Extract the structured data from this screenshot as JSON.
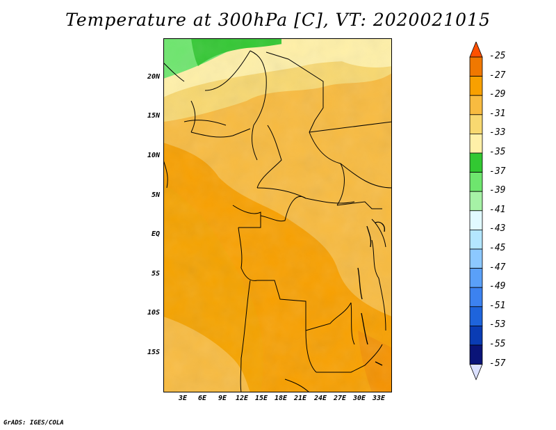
{
  "title": "Temperature at 300hPa [C], VT: 2020021015",
  "footer": "GrADS: IGES/COLA",
  "map": {
    "lat_ticks": [
      "20N",
      "15N",
      "10N",
      "5N",
      "EQ",
      "5S",
      "10S",
      "15S"
    ],
    "lon_ticks": [
      "3E",
      "6E",
      "9E",
      "12E",
      "15E",
      "18E",
      "21E",
      "24E",
      "27E",
      "30E",
      "33E"
    ]
  },
  "colorbar": {
    "labels": [
      "-25",
      "-27",
      "-29",
      "-31",
      "-33",
      "-35",
      "-37",
      "-39",
      "-41",
      "-43",
      "-45",
      "-47",
      "-49",
      "-51",
      "-53",
      "-55",
      "-57"
    ],
    "colors": [
      "#ff5000",
      "#f07800",
      "#f8a000",
      "#f8bb40",
      "#f8d870",
      "#fff0a8",
      "#32c832",
      "#6ee66e",
      "#a6f2a6",
      "#e1faff",
      "#b4e6ff",
      "#8cc8ff",
      "#5aa0f8",
      "#3c82f0",
      "#1e64dc",
      "#0a3cb4",
      "#0a1478",
      "#dce1ff"
    ]
  }
}
